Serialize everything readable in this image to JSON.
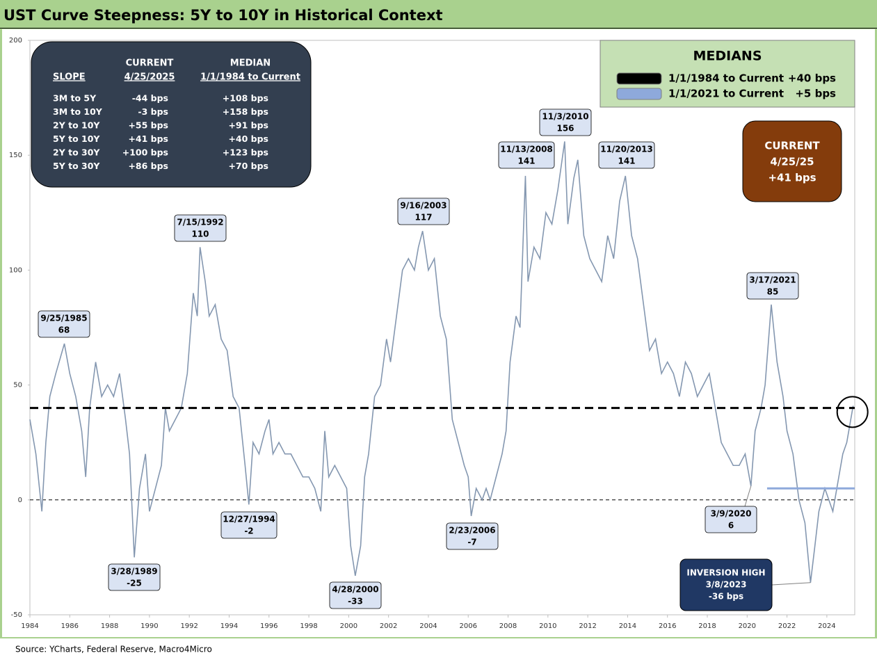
{
  "chart_data": {
    "type": "line",
    "title": "UST Curve Steepness: 5Y to 10Y in Historical Context",
    "source": "Source: YCharts, Federal Reserve, Macro4Micro",
    "xlim": [
      1984,
      2025.4
    ],
    "xticks": [
      1984,
      1986,
      1988,
      1990,
      1992,
      1994,
      1996,
      1998,
      2000,
      2002,
      2004,
      2006,
      2008,
      2010,
      2012,
      2014,
      2016,
      2018,
      2020,
      2022,
      2024
    ],
    "ylim": [
      -50,
      200
    ],
    "yticks": [
      -50,
      0,
      50,
      100,
      150,
      200
    ],
    "series": [
      {
        "color": "#8497b0",
        "x": [
          1984.0,
          1984.3,
          1984.6,
          1984.8,
          1985.0,
          1985.3,
          1985.73,
          1986.0,
          1986.3,
          1986.6,
          1986.8,
          1987.0,
          1987.3,
          1987.6,
          1987.9,
          1988.2,
          1988.5,
          1988.8,
          1989.0,
          1989.24,
          1989.5,
          1989.8,
          1990.0,
          1990.3,
          1990.6,
          1990.8,
          1991.0,
          1991.3,
          1991.6,
          1991.9,
          1992.2,
          1992.4,
          1992.54,
          1992.8,
          1993.0,
          1993.3,
          1993.6,
          1993.9,
          1994.2,
          1994.5,
          1994.8,
          1994.99,
          1995.2,
          1995.5,
          1995.8,
          1996.0,
          1996.2,
          1996.5,
          1996.8,
          1997.1,
          1997.4,
          1997.7,
          1998.0,
          1998.3,
          1998.6,
          1998.8,
          1999.0,
          1999.3,
          1999.6,
          1999.9,
          2000.1,
          2000.33,
          2000.6,
          2000.8,
          2001.0,
          2001.3,
          2001.6,
          2001.9,
          2002.1,
          2002.4,
          2002.7,
          2003.0,
          2003.3,
          2003.5,
          2003.71,
          2004.0,
          2004.3,
          2004.6,
          2004.9,
          2005.2,
          2005.5,
          2005.8,
          2006.0,
          2006.15,
          2006.4,
          2006.7,
          2006.9,
          2007.1,
          2007.4,
          2007.7,
          2007.9,
          2008.1,
          2008.4,
          2008.6,
          2008.87,
          2009.0,
          2009.3,
          2009.6,
          2009.9,
          2010.2,
          2010.5,
          2010.84,
          2011.0,
          2011.3,
          2011.5,
          2011.8,
          2012.1,
          2012.4,
          2012.7,
          2013.0,
          2013.3,
          2013.6,
          2013.89,
          2014.2,
          2014.5,
          2014.8,
          2015.1,
          2015.4,
          2015.7,
          2016.0,
          2016.3,
          2016.6,
          2016.9,
          2017.2,
          2017.5,
          2017.8,
          2018.1,
          2018.4,
          2018.7,
          2019.0,
          2019.3,
          2019.6,
          2019.9,
          2020.19,
          2020.4,
          2020.7,
          2020.9,
          2021.21,
          2021.5,
          2021.8,
          2022.0,
          2022.3,
          2022.6,
          2022.9,
          2023.18,
          2023.4,
          2023.6,
          2023.9,
          2024.1,
          2024.3,
          2024.6,
          2024.8,
          2025.0,
          2025.32
        ],
        "values": [
          35,
          20,
          -5,
          25,
          45,
          55,
          68,
          55,
          45,
          30,
          10,
          40,
          60,
          45,
          50,
          45,
          55,
          35,
          20,
          -25,
          5,
          20,
          -5,
          5,
          15,
          40,
          30,
          35,
          40,
          55,
          90,
          80,
          110,
          95,
          80,
          85,
          70,
          65,
          45,
          40,
          15,
          -2,
          25,
          20,
          30,
          35,
          20,
          25,
          20,
          20,
          15,
          10,
          10,
          5,
          -5,
          30,
          10,
          15,
          10,
          5,
          -20,
          -33,
          -20,
          10,
          20,
          45,
          50,
          70,
          60,
          80,
          100,
          105,
          100,
          110,
          117,
          100,
          105,
          80,
          70,
          35,
          25,
          15,
          10,
          -7,
          5,
          0,
          5,
          0,
          10,
          20,
          30,
          60,
          80,
          75,
          141,
          95,
          110,
          105,
          125,
          120,
          135,
          156,
          120,
          140,
          148,
          115,
          105,
          100,
          95,
          115,
          105,
          130,
          141,
          115,
          105,
          85,
          65,
          70,
          55,
          60,
          55,
          45,
          60,
          55,
          45,
          50,
          55,
          40,
          25,
          20,
          15,
          15,
          20,
          6,
          30,
          40,
          50,
          85,
          60,
          45,
          30,
          20,
          0,
          -10,
          -36,
          -20,
          -5,
          5,
          0,
          -5,
          10,
          20,
          25,
          41
        ]
      }
    ],
    "annotations": [
      {
        "date": "9/25/1985",
        "x": 1985.73,
        "value": 68
      },
      {
        "date": "3/28/1989",
        "x": 1989.24,
        "value": -25
      },
      {
        "date": "7/15/1992",
        "x": 1992.54,
        "value": 110
      },
      {
        "date": "12/27/1994",
        "x": 1994.99,
        "value": -2
      },
      {
        "date": "4/28/2000",
        "x": 2000.33,
        "value": -33
      },
      {
        "date": "9/16/2003",
        "x": 2003.71,
        "value": 117
      },
      {
        "date": "2/23/2006",
        "x": 2006.15,
        "value": -7
      },
      {
        "date": "11/13/2008",
        "x": 2008.87,
        "value": 141
      },
      {
        "date": "11/3/2010",
        "x": 2010.84,
        "value": 156
      },
      {
        "date": "11/20/2013",
        "x": 2013.89,
        "value": 141
      },
      {
        "date": "3/17/2021",
        "x": 2021.21,
        "value": 85
      },
      {
        "date": "3/9/2020",
        "x": 2020.19,
        "value": 6
      }
    ],
    "inversion": {
      "title": "INVERSION HIGH",
      "date": "3/8/2023",
      "x": 2023.18,
      "value": -36,
      "value_label": "-36 bps"
    },
    "current": {
      "title": "CURRENT",
      "date": "4/25/25",
      "value": 41,
      "value_label": "+41 bps"
    },
    "medians": {
      "title": "MEDIANS",
      "items": [
        {
          "label": "1/1/1984 to Current",
          "start": 1984,
          "value": 40,
          "value_label": "+40 bps",
          "color": "#000000"
        },
        {
          "label": "1/1/2021 to Current",
          "start": 2021,
          "value": 5,
          "value_label": "+5 bps",
          "color": "#8ea9db"
        }
      ]
    },
    "table": {
      "header": [
        [
          "",
          "CURRENT",
          "MEDIAN"
        ],
        [
          "SLOPE",
          "4/25/2025",
          "1/1/1984 to Current"
        ]
      ],
      "rows": [
        [
          "3M to 5Y",
          "-44 bps",
          "+108 bps"
        ],
        [
          "3M to 10Y",
          "-3 bps",
          "+158 bps"
        ],
        [
          "2Y to 10Y",
          "+55 bps",
          "+91 bps"
        ],
        [
          "5Y to 10Y",
          "+41 bps",
          "+40 bps"
        ],
        [
          "2Y to 30Y",
          "+100 bps",
          "+123 bps"
        ],
        [
          "5Y to 30Y",
          "+86 bps",
          "+70 bps"
        ]
      ]
    }
  }
}
